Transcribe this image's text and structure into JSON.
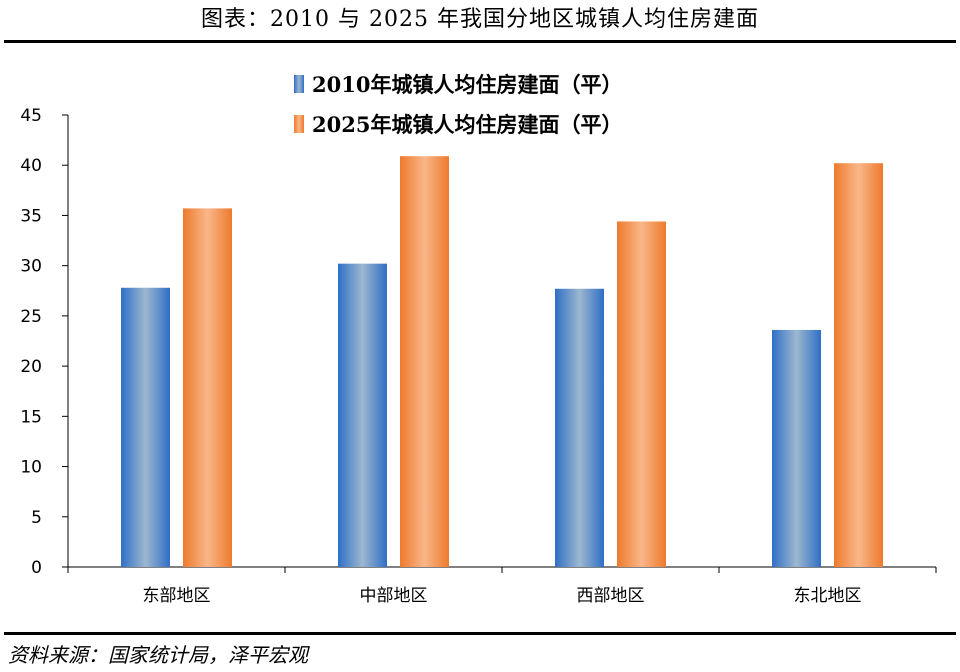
{
  "figure_title": "图表：2010 与 2025 年我国分地区城镇人均住房建面",
  "source_note": "资料来源：国家统计局，泽平宏观",
  "chart_data": {
    "type": "bar",
    "categories": [
      "东部地区",
      "中部地区",
      "西部地区",
      "东北地区"
    ],
    "series": [
      {
        "name": "2010年城镇人均住房建面（平）",
        "values": [
          27.8,
          30.2,
          27.7,
          23.6
        ],
        "color": "#4a7fc0"
      },
      {
        "name": "2025年城镇人均住房建面（平）",
        "values": [
          35.7,
          40.9,
          34.4,
          40.2
        ],
        "color": "#f07f32"
      }
    ],
    "ylim": [
      0,
      45
    ],
    "yticks": [
      0,
      5,
      10,
      15,
      20,
      25,
      30,
      35,
      40,
      45
    ],
    "grid": false,
    "legend_position": "top-center"
  }
}
